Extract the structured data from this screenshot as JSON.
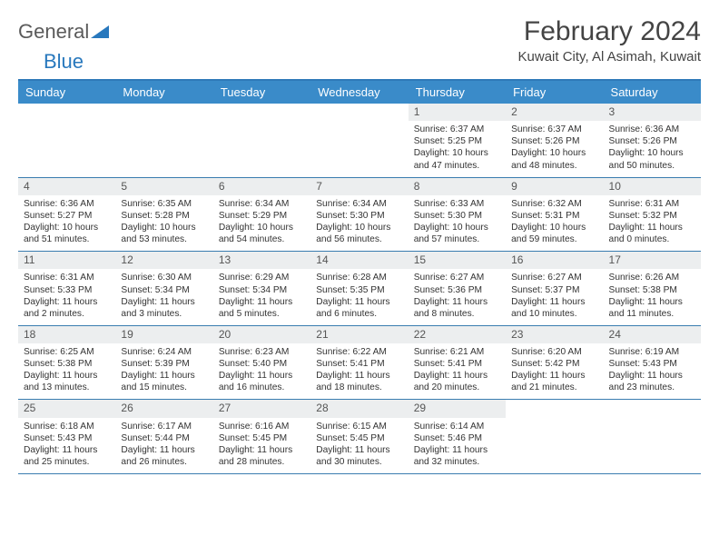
{
  "brand": {
    "text1": "General",
    "text2": "Blue"
  },
  "title": "February 2024",
  "location": "Kuwait City, Al Asimah, Kuwait",
  "colors": {
    "header_bg": "#3a8bc9",
    "header_text": "#ffffff",
    "rule": "#3a7db0",
    "daynum_bg": "#eceeef",
    "text": "#333333",
    "brand_blue": "#2878bd"
  },
  "day_headers": [
    "Sunday",
    "Monday",
    "Tuesday",
    "Wednesday",
    "Thursday",
    "Friday",
    "Saturday"
  ],
  "weeks": [
    [
      {
        "num": "",
        "sunrise": "",
        "sunset": "",
        "daylight1": "",
        "daylight2": ""
      },
      {
        "num": "",
        "sunrise": "",
        "sunset": "",
        "daylight1": "",
        "daylight2": ""
      },
      {
        "num": "",
        "sunrise": "",
        "sunset": "",
        "daylight1": "",
        "daylight2": ""
      },
      {
        "num": "",
        "sunrise": "",
        "sunset": "",
        "daylight1": "",
        "daylight2": ""
      },
      {
        "num": "1",
        "sunrise": "Sunrise: 6:37 AM",
        "sunset": "Sunset: 5:25 PM",
        "daylight1": "Daylight: 10 hours",
        "daylight2": "and 47 minutes."
      },
      {
        "num": "2",
        "sunrise": "Sunrise: 6:37 AM",
        "sunset": "Sunset: 5:26 PM",
        "daylight1": "Daylight: 10 hours",
        "daylight2": "and 48 minutes."
      },
      {
        "num": "3",
        "sunrise": "Sunrise: 6:36 AM",
        "sunset": "Sunset: 5:26 PM",
        "daylight1": "Daylight: 10 hours",
        "daylight2": "and 50 minutes."
      }
    ],
    [
      {
        "num": "4",
        "sunrise": "Sunrise: 6:36 AM",
        "sunset": "Sunset: 5:27 PM",
        "daylight1": "Daylight: 10 hours",
        "daylight2": "and 51 minutes."
      },
      {
        "num": "5",
        "sunrise": "Sunrise: 6:35 AM",
        "sunset": "Sunset: 5:28 PM",
        "daylight1": "Daylight: 10 hours",
        "daylight2": "and 53 minutes."
      },
      {
        "num": "6",
        "sunrise": "Sunrise: 6:34 AM",
        "sunset": "Sunset: 5:29 PM",
        "daylight1": "Daylight: 10 hours",
        "daylight2": "and 54 minutes."
      },
      {
        "num": "7",
        "sunrise": "Sunrise: 6:34 AM",
        "sunset": "Sunset: 5:30 PM",
        "daylight1": "Daylight: 10 hours",
        "daylight2": "and 56 minutes."
      },
      {
        "num": "8",
        "sunrise": "Sunrise: 6:33 AM",
        "sunset": "Sunset: 5:30 PM",
        "daylight1": "Daylight: 10 hours",
        "daylight2": "and 57 minutes."
      },
      {
        "num": "9",
        "sunrise": "Sunrise: 6:32 AM",
        "sunset": "Sunset: 5:31 PM",
        "daylight1": "Daylight: 10 hours",
        "daylight2": "and 59 minutes."
      },
      {
        "num": "10",
        "sunrise": "Sunrise: 6:31 AM",
        "sunset": "Sunset: 5:32 PM",
        "daylight1": "Daylight: 11 hours",
        "daylight2": "and 0 minutes."
      }
    ],
    [
      {
        "num": "11",
        "sunrise": "Sunrise: 6:31 AM",
        "sunset": "Sunset: 5:33 PM",
        "daylight1": "Daylight: 11 hours",
        "daylight2": "and 2 minutes."
      },
      {
        "num": "12",
        "sunrise": "Sunrise: 6:30 AM",
        "sunset": "Sunset: 5:34 PM",
        "daylight1": "Daylight: 11 hours",
        "daylight2": "and 3 minutes."
      },
      {
        "num": "13",
        "sunrise": "Sunrise: 6:29 AM",
        "sunset": "Sunset: 5:34 PM",
        "daylight1": "Daylight: 11 hours",
        "daylight2": "and 5 minutes."
      },
      {
        "num": "14",
        "sunrise": "Sunrise: 6:28 AM",
        "sunset": "Sunset: 5:35 PM",
        "daylight1": "Daylight: 11 hours",
        "daylight2": "and 6 minutes."
      },
      {
        "num": "15",
        "sunrise": "Sunrise: 6:27 AM",
        "sunset": "Sunset: 5:36 PM",
        "daylight1": "Daylight: 11 hours",
        "daylight2": "and 8 minutes."
      },
      {
        "num": "16",
        "sunrise": "Sunrise: 6:27 AM",
        "sunset": "Sunset: 5:37 PM",
        "daylight1": "Daylight: 11 hours",
        "daylight2": "and 10 minutes."
      },
      {
        "num": "17",
        "sunrise": "Sunrise: 6:26 AM",
        "sunset": "Sunset: 5:38 PM",
        "daylight1": "Daylight: 11 hours",
        "daylight2": "and 11 minutes."
      }
    ],
    [
      {
        "num": "18",
        "sunrise": "Sunrise: 6:25 AM",
        "sunset": "Sunset: 5:38 PM",
        "daylight1": "Daylight: 11 hours",
        "daylight2": "and 13 minutes."
      },
      {
        "num": "19",
        "sunrise": "Sunrise: 6:24 AM",
        "sunset": "Sunset: 5:39 PM",
        "daylight1": "Daylight: 11 hours",
        "daylight2": "and 15 minutes."
      },
      {
        "num": "20",
        "sunrise": "Sunrise: 6:23 AM",
        "sunset": "Sunset: 5:40 PM",
        "daylight1": "Daylight: 11 hours",
        "daylight2": "and 16 minutes."
      },
      {
        "num": "21",
        "sunrise": "Sunrise: 6:22 AM",
        "sunset": "Sunset: 5:41 PM",
        "daylight1": "Daylight: 11 hours",
        "daylight2": "and 18 minutes."
      },
      {
        "num": "22",
        "sunrise": "Sunrise: 6:21 AM",
        "sunset": "Sunset: 5:41 PM",
        "daylight1": "Daylight: 11 hours",
        "daylight2": "and 20 minutes."
      },
      {
        "num": "23",
        "sunrise": "Sunrise: 6:20 AM",
        "sunset": "Sunset: 5:42 PM",
        "daylight1": "Daylight: 11 hours",
        "daylight2": "and 21 minutes."
      },
      {
        "num": "24",
        "sunrise": "Sunrise: 6:19 AM",
        "sunset": "Sunset: 5:43 PM",
        "daylight1": "Daylight: 11 hours",
        "daylight2": "and 23 minutes."
      }
    ],
    [
      {
        "num": "25",
        "sunrise": "Sunrise: 6:18 AM",
        "sunset": "Sunset: 5:43 PM",
        "daylight1": "Daylight: 11 hours",
        "daylight2": "and 25 minutes."
      },
      {
        "num": "26",
        "sunrise": "Sunrise: 6:17 AM",
        "sunset": "Sunset: 5:44 PM",
        "daylight1": "Daylight: 11 hours",
        "daylight2": "and 26 minutes."
      },
      {
        "num": "27",
        "sunrise": "Sunrise: 6:16 AM",
        "sunset": "Sunset: 5:45 PM",
        "daylight1": "Daylight: 11 hours",
        "daylight2": "and 28 minutes."
      },
      {
        "num": "28",
        "sunrise": "Sunrise: 6:15 AM",
        "sunset": "Sunset: 5:45 PM",
        "daylight1": "Daylight: 11 hours",
        "daylight2": "and 30 minutes."
      },
      {
        "num": "29",
        "sunrise": "Sunrise: 6:14 AM",
        "sunset": "Sunset: 5:46 PM",
        "daylight1": "Daylight: 11 hours",
        "daylight2": "and 32 minutes."
      },
      {
        "num": "",
        "sunrise": "",
        "sunset": "",
        "daylight1": "",
        "daylight2": ""
      },
      {
        "num": "",
        "sunrise": "",
        "sunset": "",
        "daylight1": "",
        "daylight2": ""
      }
    ]
  ]
}
